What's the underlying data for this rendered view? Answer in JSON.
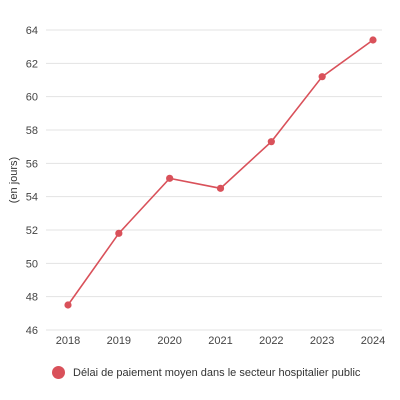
{
  "chart_data": {
    "type": "line",
    "title": "",
    "xlabel": "",
    "ylabel": "(en jours)",
    "categories": [
      "2018",
      "2019",
      "2020",
      "2021",
      "2022",
      "2023",
      "2024"
    ],
    "series": [
      {
        "name": "Délai de paiement moyen dans le secteur hospitalier public",
        "color": "#d9515a",
        "values": [
          47.5,
          51.8,
          55.1,
          54.5,
          57.3,
          61.2,
          63.4
        ]
      }
    ],
    "yticks": [
      46,
      48,
      50,
      52,
      54,
      56,
      58,
      60,
      62,
      64
    ],
    "ylim": [
      46,
      64
    ],
    "grid": true,
    "legend_position": "bottom-left"
  }
}
